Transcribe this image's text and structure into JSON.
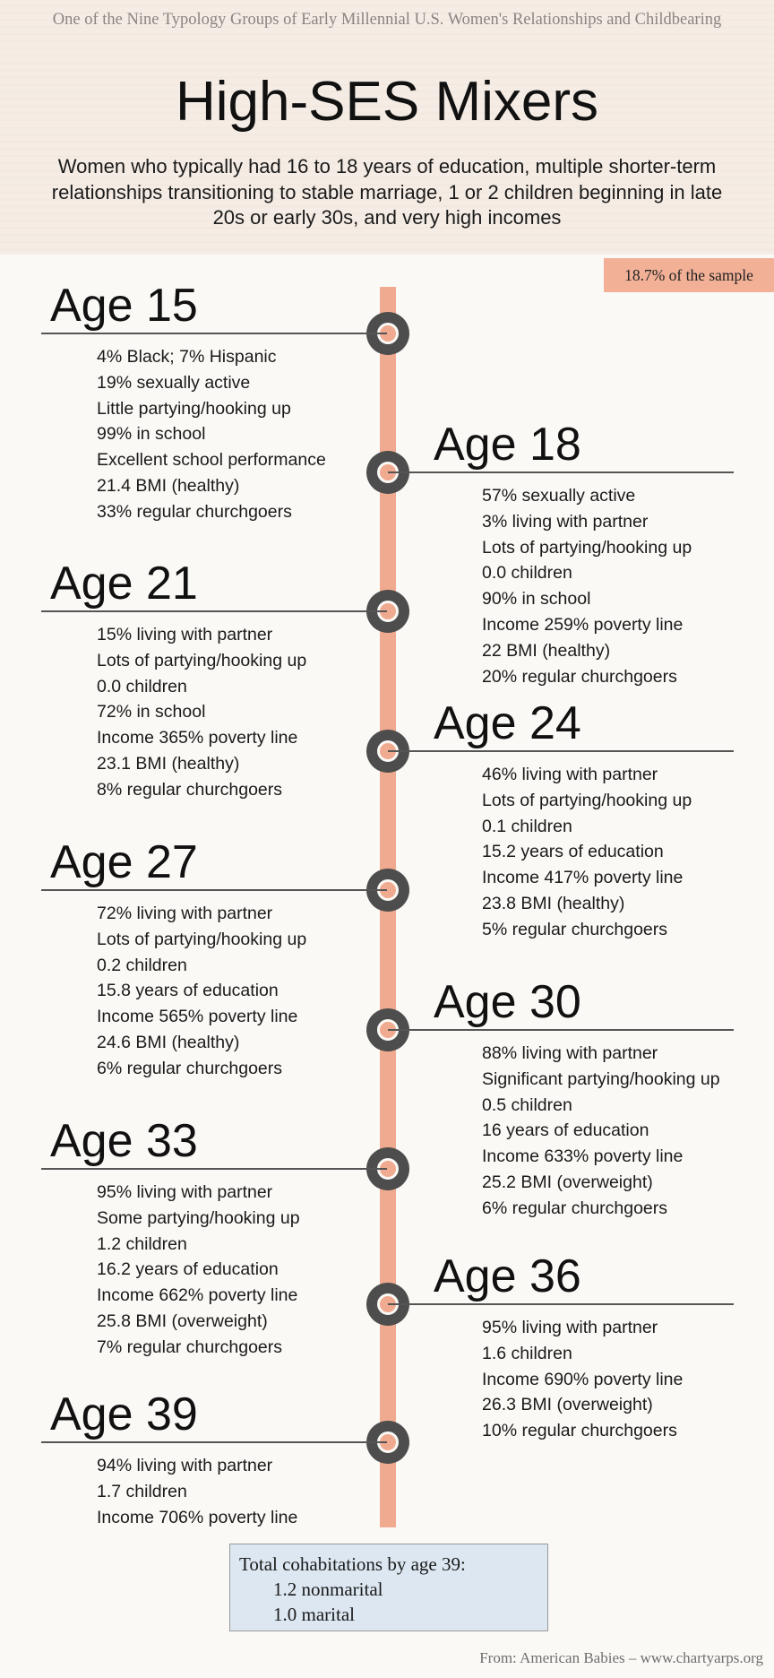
{
  "header": {
    "supertitle": "One of the Nine Typology Groups of Early Millennial U.S. Women's Relationships and Childbearing",
    "title": "High-SES Mixers",
    "subtitle": "Women who typically had 16 to 18 years of education, multiple shorter-term relationships transitioning to stable marriage, 1 or 2 children beginning in late 20s or early 30s, and very high incomes"
  },
  "sample_badge": "18.7% of the sample",
  "timeline": [
    {
      "age": "Age 15",
      "side": "left",
      "facts": [
        "4% Black; 7% Hispanic",
        "19% sexually active",
        "Little partying/hooking up",
        "99% in school",
        "Excellent school performance",
        "21.4 BMI (healthy)",
        "33% regular churchgoers"
      ]
    },
    {
      "age": "Age 18",
      "side": "right",
      "facts": [
        "57% sexually active",
        "3% living with partner",
        "Lots of partying/hooking up",
        "0.0 children",
        "90% in school",
        "Income 259% poverty line",
        "22 BMI (healthy)",
        "20% regular churchgoers"
      ]
    },
    {
      "age": "Age 21",
      "side": "left",
      "facts": [
        "15% living with partner",
        "Lots of partying/hooking up",
        "0.0 children",
        "72% in school",
        "Income 365% poverty line",
        "23.1 BMI (healthy)",
        "8% regular churchgoers"
      ]
    },
    {
      "age": "Age 24",
      "side": "right",
      "facts": [
        "46% living with partner",
        "Lots of partying/hooking up",
        "0.1 children",
        "15.2 years of education",
        "Income 417% poverty line",
        "23.8 BMI (healthy)",
        "5% regular churchgoers"
      ]
    },
    {
      "age": "Age 27",
      "side": "left",
      "facts": [
        "72% living with partner",
        "Lots of partying/hooking up",
        "0.2 children",
        "15.8 years of education",
        "Income 565% poverty line",
        "24.6 BMI (healthy)",
        "6% regular churchgoers"
      ]
    },
    {
      "age": "Age 30",
      "side": "right",
      "facts": [
        "88% living with partner",
        "Significant partying/hooking up",
        "0.5 children",
        "16 years of education",
        "Income 633% poverty line",
        "25.2 BMI (overweight)",
        "6% regular churchgoers"
      ]
    },
    {
      "age": "Age 33",
      "side": "left",
      "facts": [
        "95% living with partner",
        "Some partying/hooking up",
        "1.2 children",
        "16.2 years of education",
        "Income 662% poverty line",
        "25.8 BMI (overweight)",
        "7% regular churchgoers"
      ]
    },
    {
      "age": "Age 36",
      "side": "right",
      "facts": [
        "95% living with partner",
        "1.6 children",
        "Income 690% poverty line",
        "26.3 BMI (overweight)",
        "10% regular churchgoers"
      ]
    },
    {
      "age": "Age 39",
      "side": "left",
      "facts": [
        "94% living with partner",
        "1.7 children",
        "Income 706% poverty line"
      ]
    }
  ],
  "totals": {
    "heading": "Total cohabitations by age 39:",
    "nonmarital": "1.2 nonmarital",
    "marital": "1.0 marital"
  },
  "source": "From: American Babies – www.chartyarps.org"
}
